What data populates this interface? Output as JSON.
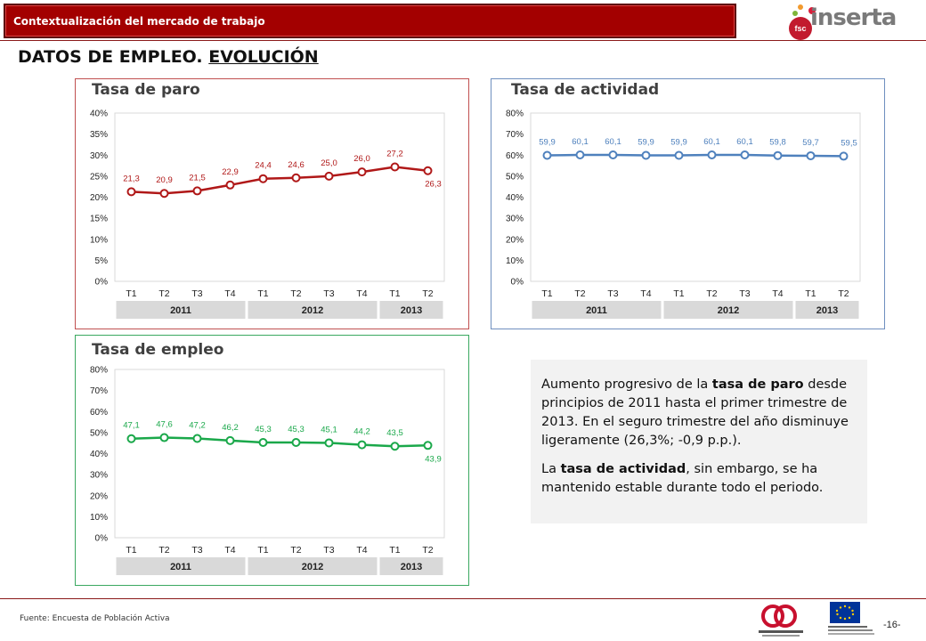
{
  "header": {
    "banner_title": "Contextualización del mercado de trabajo",
    "logo_word": "inserta",
    "logo_badge": "fsc"
  },
  "page": {
    "title_part1": "DATOS DE EMPLEO.",
    "title_part2": "EVOLUCIÓN"
  },
  "colors": {
    "paro": "#b01818",
    "actividad": "#4f81bd",
    "empleo": "#1aa84a",
    "banner": "#a30000"
  },
  "chart_data": [
    {
      "type": "line",
      "title": "Tasa de paro",
      "categories": [
        "T1",
        "T2",
        "T3",
        "T4",
        "T1",
        "T2",
        "T3",
        "T4",
        "T1",
        "T2"
      ],
      "groups": [
        {
          "label": "2011",
          "span": 4
        },
        {
          "label": "2012",
          "span": 4
        },
        {
          "label": "2013",
          "span": 2
        }
      ],
      "values": [
        21.3,
        20.9,
        21.5,
        22.9,
        24.4,
        24.6,
        25.0,
        26.0,
        27.2,
        26.3
      ],
      "labels": [
        "21,3",
        "20,9",
        "21,5",
        "22,9",
        "24,4",
        "24,6",
        "25,0",
        "26,0",
        "27,2",
        "26,3"
      ],
      "ylim": [
        0,
        40
      ],
      "yticks": [
        "0%",
        "5%",
        "10%",
        "15%",
        "20%",
        "25%",
        "30%",
        "35%",
        "40%"
      ],
      "color": "#b01818"
    },
    {
      "type": "line",
      "title": "Tasa de actividad",
      "categories": [
        "T1",
        "T2",
        "T3",
        "T4",
        "T1",
        "T2",
        "T3",
        "T4",
        "T1",
        "T2"
      ],
      "groups": [
        {
          "label": "2011",
          "span": 4
        },
        {
          "label": "2012",
          "span": 4
        },
        {
          "label": "2013",
          "span": 2
        }
      ],
      "values": [
        59.9,
        60.1,
        60.1,
        59.9,
        59.9,
        60.1,
        60.1,
        59.8,
        59.7,
        59.5
      ],
      "labels": [
        "59,9",
        "60,1",
        "60,1",
        "59,9",
        "59,9",
        "60,1",
        "60,1",
        "59,8",
        "59,7",
        "59,5"
      ],
      "ylim": [
        0,
        80
      ],
      "yticks": [
        "0%",
        "10%",
        "20%",
        "30%",
        "40%",
        "50%",
        "60%",
        "70%",
        "80%"
      ],
      "color": "#4f81bd"
    },
    {
      "type": "line",
      "title": "Tasa de empleo",
      "categories": [
        "T1",
        "T2",
        "T3",
        "T4",
        "T1",
        "T2",
        "T3",
        "T4",
        "T1",
        "T2"
      ],
      "groups": [
        {
          "label": "2011",
          "span": 4
        },
        {
          "label": "2012",
          "span": 4
        },
        {
          "label": "2013",
          "span": 2
        }
      ],
      "values": [
        47.1,
        47.6,
        47.2,
        46.2,
        45.3,
        45.3,
        45.1,
        44.2,
        43.5,
        43.9
      ],
      "labels": [
        "47,1",
        "47,6",
        "47,2",
        "46,2",
        "45,3",
        "45,3",
        "45,1",
        "44,2",
        "43,5",
        "43,9"
      ],
      "ylim": [
        0,
        80
      ],
      "yticks": [
        "0%",
        "10%",
        "20%",
        "30%",
        "40%",
        "50%",
        "60%",
        "70%",
        "80%"
      ],
      "color": "#1aa84a"
    }
  ],
  "note": {
    "p1_a": "Aumento progresivo de la ",
    "p1_b": "tasa de paro",
    "p1_c": " desde principios de 2011 hasta el primer trimestre de 2013. En el seguro trimestre del año disminuye ligeramente (26,3%; -0,9 p.p.).",
    "p2_a": "La ",
    "p2_b": "tasa de actividad",
    "p2_c": ", sin embargo, se ha mantenido estable durante todo el periodo."
  },
  "footer": {
    "source": "Fuente: Encuesta de Población Activa",
    "page_number": "-16-"
  }
}
